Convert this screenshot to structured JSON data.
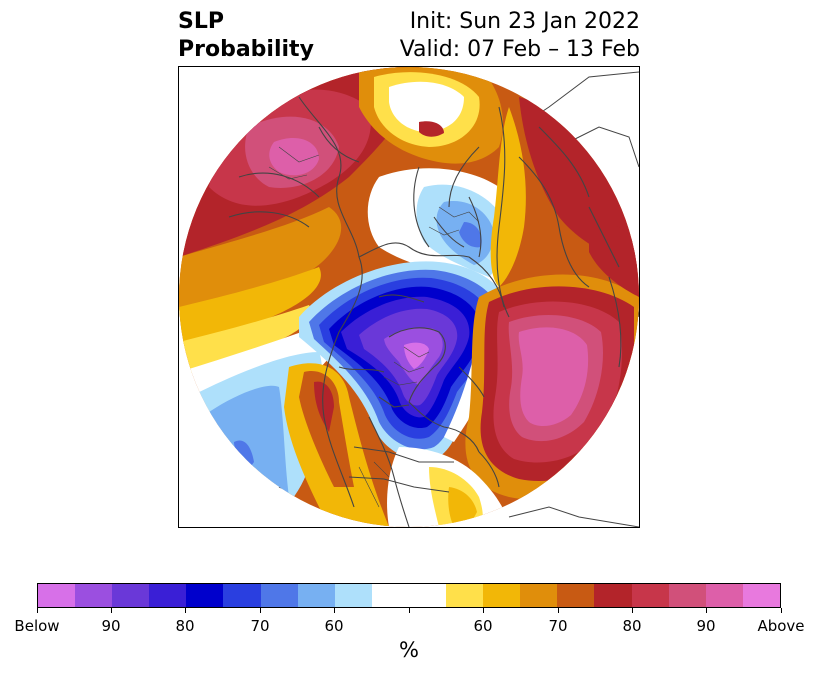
{
  "title": {
    "left_line1": "SLP",
    "left_line2": "Probability",
    "right_line1": "Init: Sun 23 Jan 2022",
    "right_line2": "Valid: 07 Feb – 13 Feb"
  },
  "map": {
    "projection": "north-polar-stereographic",
    "coastline_color": "#444444"
  },
  "colorbar": {
    "unit_label": "%",
    "colors": [
      "#d770e8",
      "#9b4fe0",
      "#6a38d8",
      "#3a1fd6",
      "#0000cc",
      "#2a3fe0",
      "#4f77e8",
      "#77b0f2",
      "#aee0fb",
      "#ffffff",
      "#ffffff",
      "#ffe04a",
      "#f2b707",
      "#e08e0b",
      "#c85a13",
      "#b3242a",
      "#c7364a",
      "#d1507a",
      "#dd5fa9",
      "#e879de"
    ],
    "tick_labels": [
      {
        "text": "Below"
      },
      {
        "text": "90"
      },
      {
        "text": "80"
      },
      {
        "text": "70"
      },
      {
        "text": "60"
      },
      {
        "text": "60"
      },
      {
        "text": "70"
      },
      {
        "text": "80"
      },
      {
        "text": "90"
      },
      {
        "text": "Above"
      }
    ]
  }
}
